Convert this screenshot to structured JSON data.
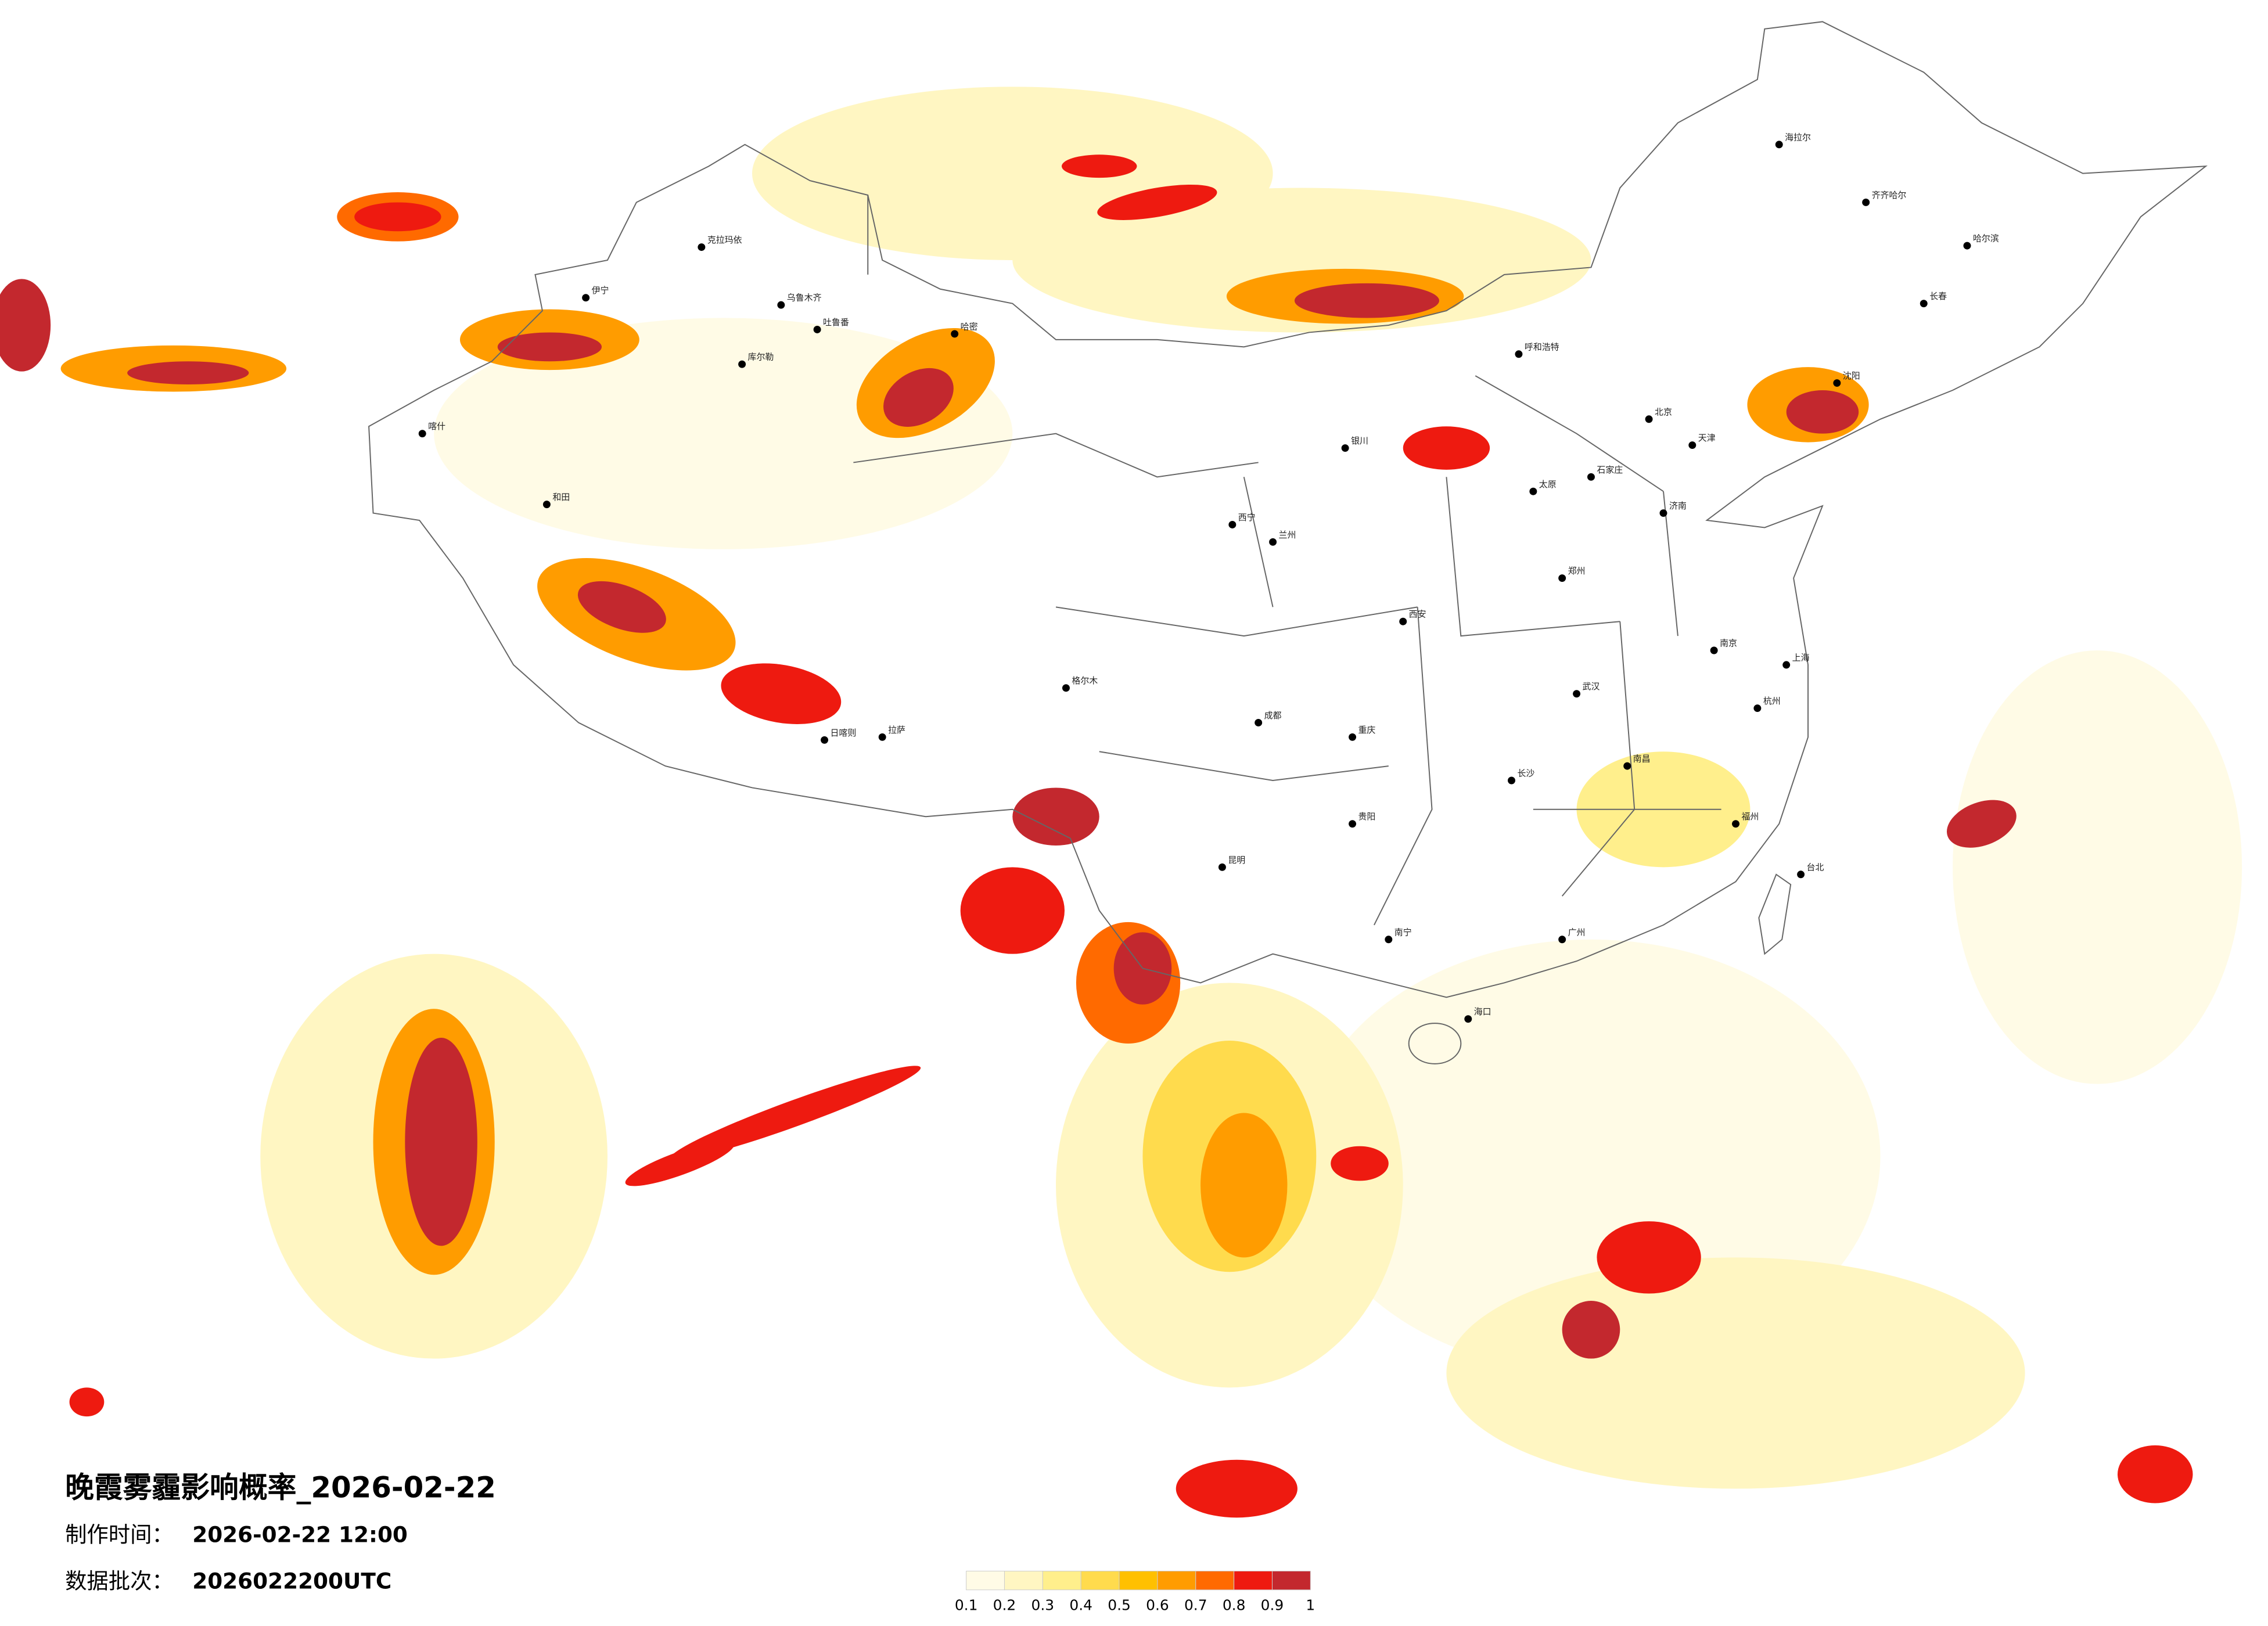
{
  "map": {
    "title": "晚霞雾霾影响概率_2026-02-22",
    "made_label": "制作时间：",
    "made_time": "2026-02-22 12:00",
    "batch_label": "数据批次：",
    "batch": "2026022200UTC",
    "cities": [
      "克拉玛依",
      "乌鲁木齐",
      "吐鲁番",
      "哈密",
      "库尔勒",
      "伊宁",
      "喀什",
      "和田",
      "拉萨",
      "日喀则",
      "格尔木",
      "西宁",
      "兰州",
      "银川",
      "呼和浩特",
      "北京",
      "天津",
      "石家庄",
      "太原",
      "西安",
      "郑州",
      "济南",
      "南京",
      "上海",
      "杭州",
      "武汉",
      "长沙",
      "南昌",
      "福州",
      "广州",
      "南宁",
      "昆明",
      "贵阳",
      "成都",
      "重庆",
      "海口",
      "哈尔滨",
      "长春",
      "沈阳",
      "台北",
      "海拉尔",
      "齐齐哈尔"
    ],
    "colorbar": {
      "ticks": [
        0.1,
        0.2,
        0.3,
        0.4,
        0.5,
        0.6,
        0.7,
        0.8,
        0.9,
        1
      ],
      "colors": [
        "#fffbe6",
        "#fff6c2",
        "#ffef8c",
        "#ffdb4d",
        "#ffc000",
        "#ff9c00",
        "#ff6a00",
        "#ee1a10",
        "#c3282e"
      ]
    }
  }
}
